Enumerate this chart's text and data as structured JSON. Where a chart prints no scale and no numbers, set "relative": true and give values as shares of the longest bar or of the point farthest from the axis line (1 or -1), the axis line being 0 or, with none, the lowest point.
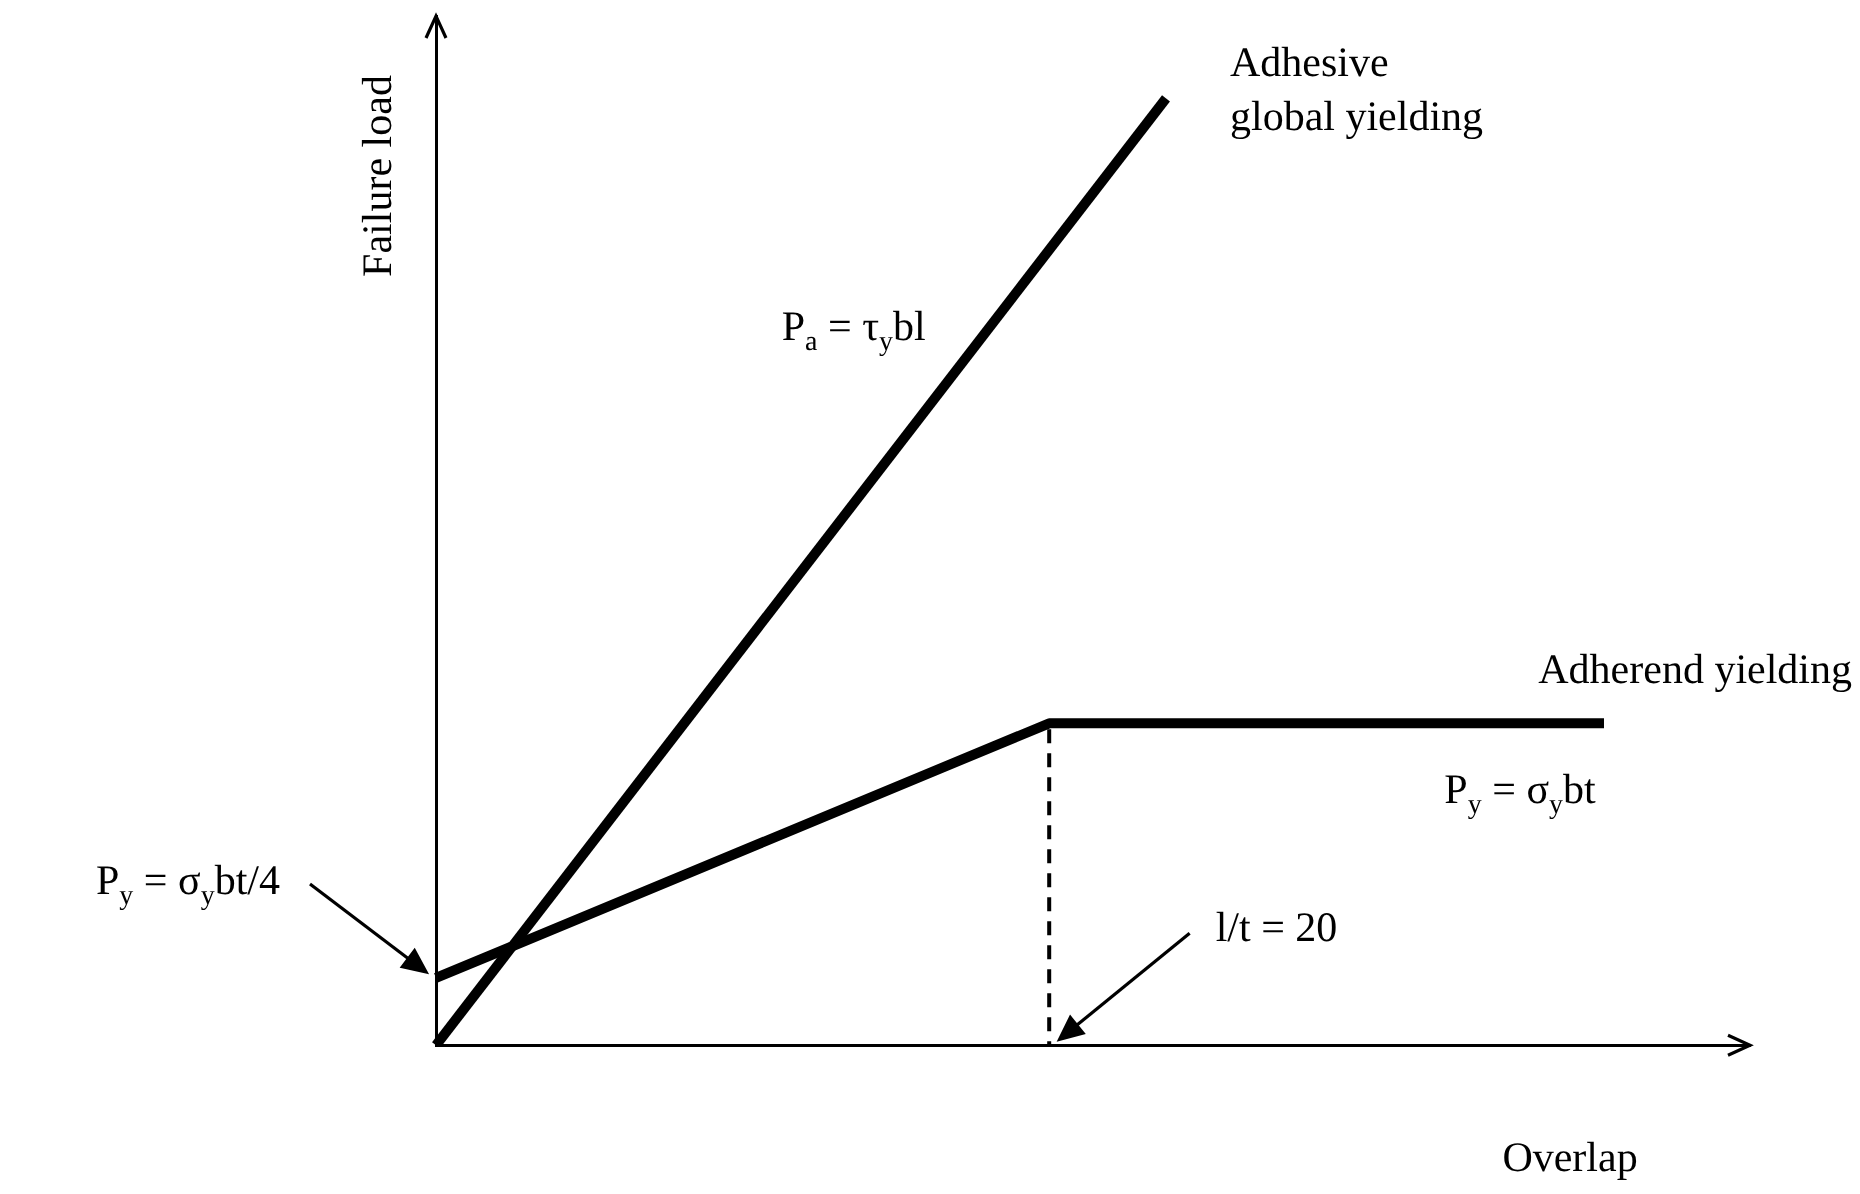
{
  "chart_data": {
    "type": "line",
    "xlabel": "Overlap",
    "ylabel": "Failure load",
    "relative": true,
    "grid": false,
    "legend": false,
    "marker": "none",
    "categories": [
      null,
      null,
      null,
      null,
      null,
      null,
      null,
      null,
      null,
      null,
      null,
      null,
      null,
      null,
      null,
      null,
      null,
      null,
      null,
      null,
      null,
      null,
      null,
      null,
      null,
      null,
      null,
      null,
      null,
      null,
      null,
      null,
      null,
      null,
      null,
      null,
      null,
      null,
      null,
      null,
      null,
      null,
      null,
      null,
      null,
      null
    ],
    "series": [
      {
        "color": "#000000",
        "values": [
          0,
          null,
          null,
          null,
          null,
          null,
          null,
          null,
          null,
          null,
          null,
          null,
          null,
          null,
          null,
          null,
          null,
          null,
          null,
          null,
          null,
          null,
          null,
          null,
          null,
          1,
          null,
          null,
          null,
          null,
          null,
          null,
          null,
          null,
          null,
          null,
          null,
          null,
          null,
          null,
          null,
          null,
          null,
          null,
          null,
          null
        ]
      },
      {
        "color": "#000000",
        "values": [
          0.071,
          null,
          null,
          null,
          null,
          null,
          null,
          null,
          null,
          null,
          null,
          null,
          null,
          null,
          null,
          null,
          null,
          null,
          null,
          null,
          null,
          0.34,
          null,
          null,
          null,
          null,
          null,
          null,
          null,
          null,
          null,
          null,
          null,
          null,
          null,
          null,
          null,
          null,
          null,
          null,
          0.34,
          null,
          null,
          null,
          null,
          null
        ]
      }
    ],
    "annotations": [
      "Adhesive\nglobal yielding",
      "P$_{a}$ = τ$_{y}$bl",
      "Adherend yielding",
      "P$_{y}$ = σ$_{y}$bt",
      "P$_{y}$ = σ$_{y}$bt/4",
      "l/t = 20"
    ]
  }
}
